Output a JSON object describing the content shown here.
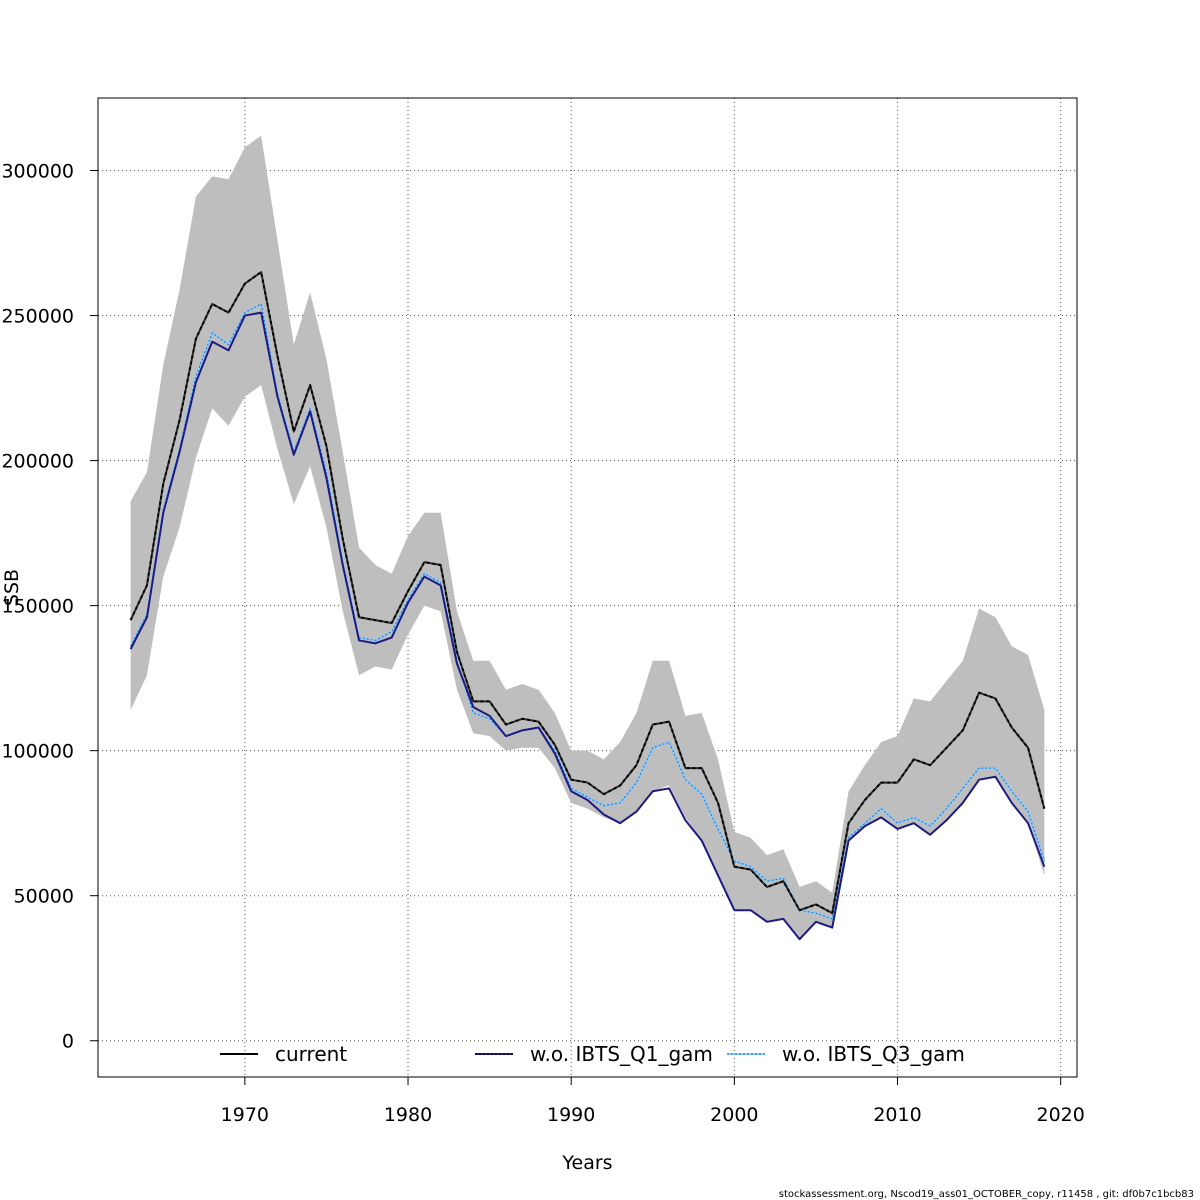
{
  "chart_data": {
    "type": "line",
    "xlabel": "Years",
    "ylabel": "SSB",
    "xlim": [
      1961,
      2021
    ],
    "ylim": [
      -12500,
      325000
    ],
    "grid": true,
    "legend_position": "bottom",
    "x_ticks": [
      1970,
      1980,
      1990,
      2000,
      2010,
      2020
    ],
    "y_ticks": [
      0,
      50000,
      100000,
      150000,
      200000,
      250000,
      300000
    ],
    "x_tick_labels": [
      "1970",
      "1980",
      "1990",
      "2000",
      "2010",
      "2020"
    ],
    "y_tick_labels": [
      "0",
      "50000",
      "100000",
      "150000",
      "200000",
      "250000",
      "300000"
    ],
    "x": [
      1963,
      1964,
      1965,
      1966,
      1967,
      1968,
      1969,
      1970,
      1971,
      1972,
      1973,
      1974,
      1975,
      1976,
      1977,
      1978,
      1979,
      1980,
      1981,
      1982,
      1983,
      1984,
      1985,
      1986,
      1987,
      1988,
      1989,
      1990,
      1991,
      1992,
      1993,
      1994,
      1995,
      1996,
      1997,
      1998,
      1999,
      2000,
      2001,
      2002,
      2003,
      2004,
      2005,
      2006,
      2007,
      2008,
      2009,
      2010,
      2011,
      2012,
      2013,
      2014,
      2015,
      2016,
      2017,
      2018,
      2019
    ],
    "band": {
      "color": "#bebebe",
      "upper": [
        186000,
        196000,
        233000,
        259000,
        291000,
        298000,
        297000,
        308000,
        312000,
        276000,
        240000,
        258000,
        235000,
        203000,
        170000,
        164000,
        161000,
        174000,
        182000,
        182000,
        148000,
        131000,
        131000,
        121000,
        123000,
        121000,
        113000,
        100000,
        100000,
        97000,
        103000,
        113000,
        131000,
        131000,
        112000,
        113000,
        97000,
        72000,
        70000,
        64000,
        66000,
        53000,
        55000,
        51000,
        86000,
        95000,
        103000,
        105000,
        118000,
        117000,
        124000,
        131000,
        149000,
        146000,
        136000,
        133000,
        114000
      ],
      "lower": [
        114000,
        126000,
        160000,
        177000,
        201000,
        218000,
        212000,
        222000,
        226000,
        204000,
        185000,
        198000,
        177000,
        148000,
        126000,
        129000,
        128000,
        140000,
        150000,
        148000,
        121000,
        106000,
        105000,
        100000,
        101000,
        101000,
        94000,
        82000,
        80000,
        77000,
        75000,
        79000,
        86000,
        88000,
        77000,
        69000,
        57000,
        45000,
        45000,
        41000,
        42000,
        35000,
        41000,
        39000,
        69000,
        74000,
        77000,
        73000,
        75000,
        71000,
        76000,
        82000,
        90000,
        91000,
        82000,
        75000,
        57000
      ]
    },
    "series": [
      {
        "name": "current",
        "color": "#000000",
        "width": 2,
        "dash": "",
        "values": [
          145000,
          157000,
          192000,
          214000,
          242000,
          254000,
          251000,
          261000,
          265000,
          236000,
          210000,
          226000,
          205000,
          173000,
          146000,
          145000,
          144000,
          155000,
          165000,
          164000,
          134000,
          117000,
          117000,
          109000,
          111000,
          110000,
          102000,
          90000,
          89000,
          85000,
          88000,
          95000,
          109000,
          110000,
          94000,
          94000,
          82000,
          60000,
          59000,
          53000,
          55000,
          45000,
          47000,
          44000,
          75000,
          83000,
          89000,
          89000,
          97000,
          95000,
          101000,
          107000,
          120000,
          118000,
          108000,
          101000,
          80000
        ]
      },
      {
        "name": "w.o. IBTS_Q1_gam",
        "color": "#1f1a80",
        "width": 2,
        "dash": "5,3",
        "values": [
          135000,
          146000,
          182000,
          203000,
          227000,
          241000,
          238000,
          250000,
          251000,
          222000,
          202000,
          217000,
          194000,
          164000,
          138000,
          137000,
          139000,
          151000,
          160000,
          157000,
          130000,
          115000,
          112000,
          105000,
          107000,
          108000,
          99000,
          86000,
          83000,
          78000,
          75000,
          79000,
          86000,
          87000,
          76000,
          69000,
          57000,
          45000,
          45000,
          41000,
          42000,
          35000,
          41000,
          39000,
          69000,
          74000,
          77000,
          73000,
          75000,
          71000,
          76000,
          82000,
          90000,
          91000,
          82000,
          75000,
          60000
        ]
      },
      {
        "name": "w.o. IBTS_Q3_gam",
        "color": "#87cefa",
        "width": 2,
        "dash": "2,2",
        "values": [
          136000,
          147000,
          183000,
          204000,
          229000,
          244000,
          240000,
          251000,
          254000,
          223000,
          203000,
          218000,
          196000,
          165000,
          139000,
          138000,
          141000,
          152000,
          161000,
          158000,
          131000,
          113000,
          111000,
          105000,
          107000,
          108000,
          100000,
          87000,
          84000,
          81000,
          82000,
          89000,
          101000,
          103000,
          90000,
          85000,
          73000,
          62000,
          60000,
          55000,
          56000,
          45000,
          44000,
          42000,
          70000,
          75000,
          80000,
          75000,
          77000,
          74000,
          80000,
          87000,
          94000,
          94000,
          86000,
          79000,
          62000
        ]
      }
    ]
  },
  "footnote": "stockassessment.org, Nscod19_ass01_OCTOBER_copy, r11458 , git: df0b7c1bcb83"
}
